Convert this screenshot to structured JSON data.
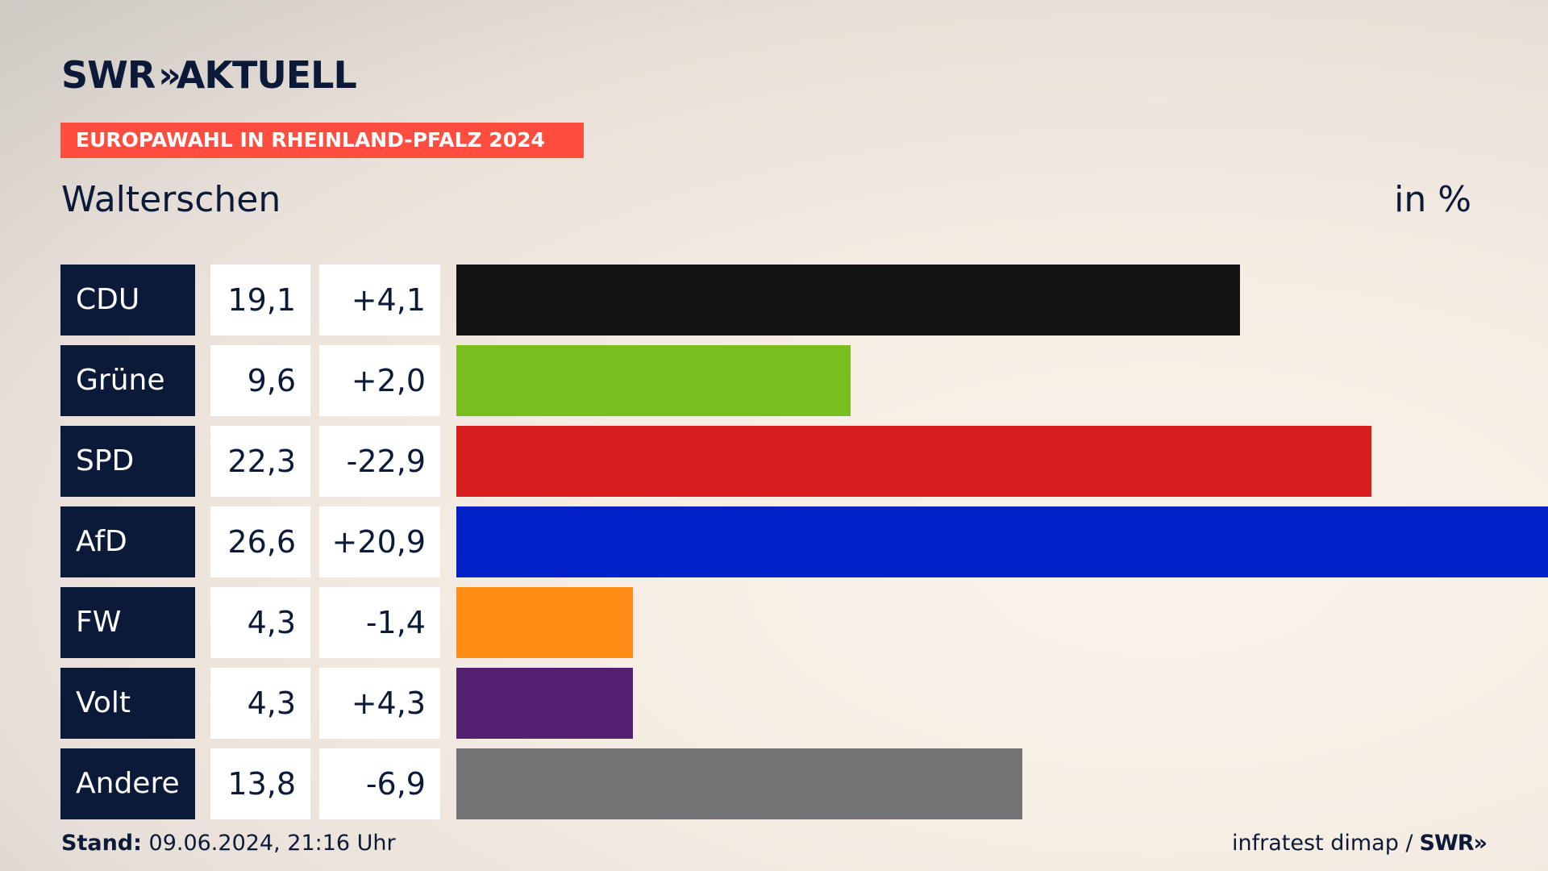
{
  "brand": {
    "logo_main": "SWR",
    "logo_chevrons": "»",
    "logo_suffix": "AKTUELL"
  },
  "header": {
    "banner": "EUROPAWAHL IN RHEINLAND-PFALZ 2024",
    "region": "Walterschen",
    "unit": "in %"
  },
  "chart_data": {
    "type": "bar",
    "orientation": "horizontal",
    "title": "EUROPAWAHL IN RHEINLAND-PFALZ 2024",
    "subtitle": "Walterschen",
    "unit": "in %",
    "categories": [
      "CDU",
      "Grüne",
      "SPD",
      "AfD",
      "FW",
      "Volt",
      "Andere"
    ],
    "values": [
      19.1,
      9.6,
      22.3,
      26.6,
      4.3,
      4.3,
      13.8
    ],
    "value_labels": [
      "19,1",
      "9,6",
      "22,3",
      "26,6",
      "4,3",
      "4,3",
      "13,8"
    ],
    "change_labels": [
      "+4,1",
      "+2,0",
      "-22,9",
      "+20,9",
      "-1,4",
      "+4,3",
      "-6,9"
    ],
    "colors": [
      "#141414",
      "#78be1e",
      "#d91e1e",
      "#0021c8",
      "#ff8c14",
      "#52206e",
      "#737376"
    ],
    "xlim": [
      0,
      26.6
    ],
    "grid": false
  },
  "footer": {
    "stand_label": "Stand:",
    "stand_value": "09.06.2024, 21:16 Uhr",
    "source": "infratest dimap /",
    "source_logo": "SWR»"
  }
}
